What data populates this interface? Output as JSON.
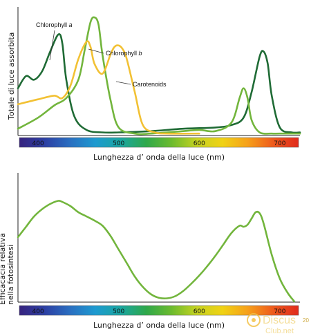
{
  "chart_data": [
    {
      "type": "line",
      "ylabel": "Totale di luce assorbita",
      "xlabel": "Lunghezza d’ onda della luce (nm)",
      "xlim": [
        375,
        725
      ],
      "xticks": [
        "400",
        "500",
        "600",
        "700"
      ],
      "grid": false,
      "series": [
        {
          "name": "Chlorophyll a",
          "color": "#1f6b35",
          "x": [
            375,
            385,
            395,
            405,
            415,
            425,
            430,
            435,
            445,
            460,
            480,
            500,
            540,
            580,
            620,
            640,
            655,
            665,
            675,
            680,
            685,
            690,
            700,
            715,
            725
          ],
          "y": [
            0.38,
            0.48,
            0.45,
            0.52,
            0.68,
            0.82,
            0.75,
            0.45,
            0.15,
            0.04,
            0.02,
            0.02,
            0.03,
            0.05,
            0.06,
            0.08,
            0.14,
            0.35,
            0.64,
            0.68,
            0.58,
            0.32,
            0.06,
            0.02,
            0.02
          ]
        },
        {
          "name": "Chlorophyll b",
          "color": "#72b53c",
          "x": [
            375,
            400,
            420,
            435,
            450,
            458,
            465,
            470,
            475,
            480,
            490,
            500,
            520,
            540,
            580,
            600,
            620,
            640,
            650,
            655,
            660,
            665,
            675,
            690,
            700,
            725
          ],
          "y": [
            0.05,
            0.14,
            0.24,
            0.3,
            0.45,
            0.7,
            0.92,
            0.96,
            0.9,
            0.65,
            0.28,
            0.06,
            0.01,
            0.01,
            0.03,
            0.04,
            0.03,
            0.1,
            0.3,
            0.38,
            0.3,
            0.12,
            0.02,
            0.01,
            0.01,
            0.01
          ]
        },
        {
          "name": "Carotenoids",
          "color": "#f2c134",
          "x": [
            375,
            400,
            420,
            430,
            440,
            450,
            460,
            465,
            470,
            480,
            490,
            495,
            500,
            505,
            510,
            520,
            530,
            545,
            560,
            600
          ],
          "y": [
            0.25,
            0.29,
            0.32,
            0.3,
            0.4,
            0.62,
            0.76,
            0.72,
            0.58,
            0.5,
            0.66,
            0.72,
            0.73,
            0.7,
            0.62,
            0.35,
            0.08,
            0.02,
            0.01,
            0.01
          ]
        }
      ]
    },
    {
      "type": "line",
      "ylabel": "Efficacacia relativa nella fotosintesi",
      "xlabel": "Lunghezza d’ onda della luce (nm)",
      "xlim": [
        375,
        725
      ],
      "xticks": [
        "400",
        "500",
        "600",
        "700"
      ],
      "grid": false,
      "series": [
        {
          "color": "#72b53c",
          "x": [
            375,
            385,
            395,
            405,
            415,
            425,
            430,
            440,
            450,
            460,
            470,
            480,
            490,
            500,
            510,
            520,
            530,
            540,
            550,
            560,
            570,
            580,
            590,
            600,
            610,
            620,
            630,
            640,
            650,
            655,
            660,
            665,
            670,
            675,
            680,
            690,
            700,
            710,
            718
          ],
          "y": [
            0.62,
            0.72,
            0.82,
            0.89,
            0.94,
            0.97,
            0.96,
            0.92,
            0.86,
            0.82,
            0.78,
            0.73,
            0.63,
            0.5,
            0.37,
            0.24,
            0.14,
            0.07,
            0.035,
            0.03,
            0.05,
            0.1,
            0.17,
            0.25,
            0.34,
            0.44,
            0.55,
            0.66,
            0.73,
            0.72,
            0.74,
            0.8,
            0.86,
            0.85,
            0.75,
            0.45,
            0.22,
            0.08,
            0.0
          ]
        }
      ]
    }
  ],
  "annotations": {
    "chl_a": {
      "name": "Chlorophyll",
      "suffix": "a"
    },
    "chl_b": {
      "name": "Chlorophyll",
      "suffix": "b"
    },
    "carotenoids": "Carotenoids"
  },
  "watermark": {
    "brand": "Discus",
    "sub": "Club.net",
    "badge": "20"
  },
  "spectrum_colors": [
    "#36237e",
    "#2c3fa3",
    "#2a6fc1",
    "#1d9ad0",
    "#1aa6a0",
    "#2ea84a",
    "#6cbb2e",
    "#c6d321",
    "#f0d214",
    "#f6a01a",
    "#ee5a1c",
    "#e02a1c"
  ]
}
